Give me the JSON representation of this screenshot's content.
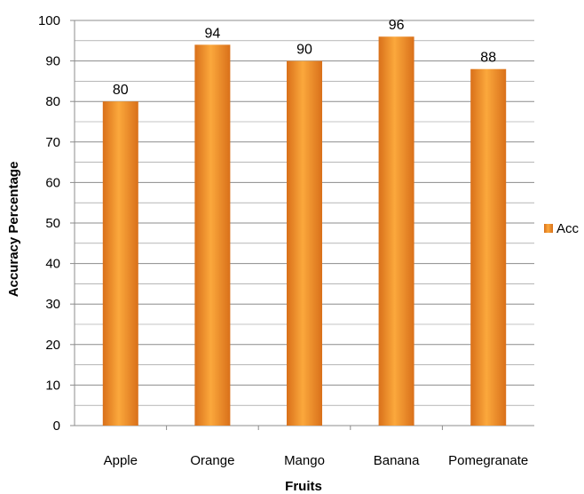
{
  "chart_data": {
    "type": "bar",
    "title": "",
    "xlabel": "Fruits",
    "ylabel": "Accuracy Percentage",
    "categories": [
      "Apple",
      "Orange",
      "Mango",
      "Banana",
      "Pomegranate"
    ],
    "series": [
      {
        "name": "Acc",
        "values": [
          80,
          94,
          90,
          96,
          88
        ]
      }
    ],
    "data_labels": [
      "80",
      "94",
      "90",
      "96",
      "88"
    ],
    "ylim": [
      0,
      100
    ],
    "yticks": [
      "0",
      "10",
      "20",
      "30",
      "40",
      "50",
      "60",
      "70",
      "80",
      "90",
      "100"
    ],
    "grid": true,
    "legend_position": "right",
    "colors": {
      "bar_dark": "#D9701A",
      "bar_light": "#FBA83C",
      "grid": "#8c8c8c",
      "axis": "#8c8c8c"
    }
  }
}
